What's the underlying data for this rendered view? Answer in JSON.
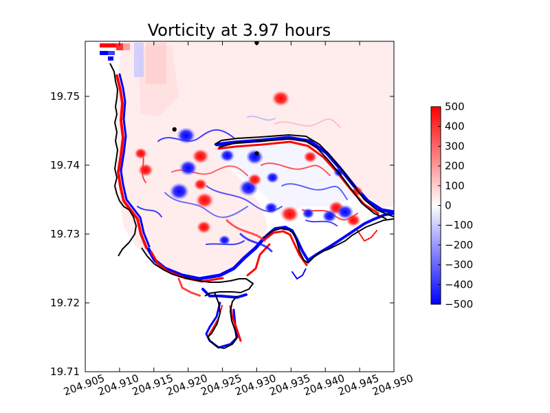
{
  "chart_data": {
    "type": "heatmap",
    "title": "Vorticity at 3.97 hours",
    "xlabel": "",
    "ylabel": "",
    "xlim": [
      204.905,
      204.95
    ],
    "ylim": [
      19.71,
      19.758
    ],
    "x_ticks": [
      "204.905",
      "204.910",
      "204.915",
      "204.920",
      "204.925",
      "204.930",
      "204.935",
      "204.940",
      "204.945",
      "204.950"
    ],
    "y_ticks": [
      "19.71",
      "19.72",
      "19.73",
      "19.74",
      "19.75"
    ],
    "colorbar": {
      "min": -500,
      "max": 500,
      "ticks": [
        "500",
        "400",
        "300",
        "200",
        "100",
        "0",
        "−100",
        "−200",
        "−300",
        "−400",
        "−500"
      ],
      "colors": [
        "#0000ff",
        "#ffffff",
        "#ff0000"
      ]
    },
    "markers": [
      {
        "x": 204.93,
        "y": 19.7578
      },
      {
        "x": 204.918,
        "y": 19.7452
      },
      {
        "x": 204.93,
        "y": 19.7417
      }
    ],
    "eddies": [
      {
        "x": 204.9335,
        "y": 19.7497,
        "value": 420
      },
      {
        "x": 204.9197,
        "y": 19.7443,
        "value": -450
      },
      {
        "x": 204.9218,
        "y": 19.7413,
        "value": 380
      },
      {
        "x": 204.92,
        "y": 19.7396,
        "value": -420
      },
      {
        "x": 204.9138,
        "y": 19.7393,
        "value": 320
      },
      {
        "x": 204.9257,
        "y": 19.7414,
        "value": -300
      },
      {
        "x": 204.9218,
        "y": 19.7372,
        "value": 260
      },
      {
        "x": 204.9187,
        "y": 19.7362,
        "value": -480
      },
      {
        "x": 204.9288,
        "y": 19.7367,
        "value": -460
      },
      {
        "x": 204.9224,
        "y": 19.7349,
        "value": 420
      },
      {
        "x": 204.9297,
        "y": 19.7379,
        "value": 280
      },
      {
        "x": 204.9323,
        "y": 19.7382,
        "value": -240
      },
      {
        "x": 204.9297,
        "y": 19.7412,
        "value": -400
      },
      {
        "x": 204.9348,
        "y": 19.7329,
        "value": 440
      },
      {
        "x": 204.9321,
        "y": 19.7338,
        "value": -260
      },
      {
        "x": 204.9416,
        "y": 19.7338,
        "value": 340
      },
      {
        "x": 204.9406,
        "y": 19.7326,
        "value": -300
      },
      {
        "x": 204.9441,
        "y": 19.732,
        "value": 300
      },
      {
        "x": 204.9375,
        "y": 19.733,
        "value": -220
      },
      {
        "x": 204.9429,
        "y": 19.7332,
        "value": -380
      },
      {
        "x": 204.9378,
        "y": 19.7412,
        "value": 260
      },
      {
        "x": 204.9223,
        "y": 19.731,
        "value": 300
      },
      {
        "x": 204.9131,
        "y": 19.7417,
        "value": 240
      },
      {
        "x": 204.9253,
        "y": 19.7291,
        "value": -200
      },
      {
        "x": 204.942,
        "y": 19.739,
        "value": -180
      },
      {
        "x": 204.9446,
        "y": 19.7362,
        "value": 200
      }
    ]
  }
}
